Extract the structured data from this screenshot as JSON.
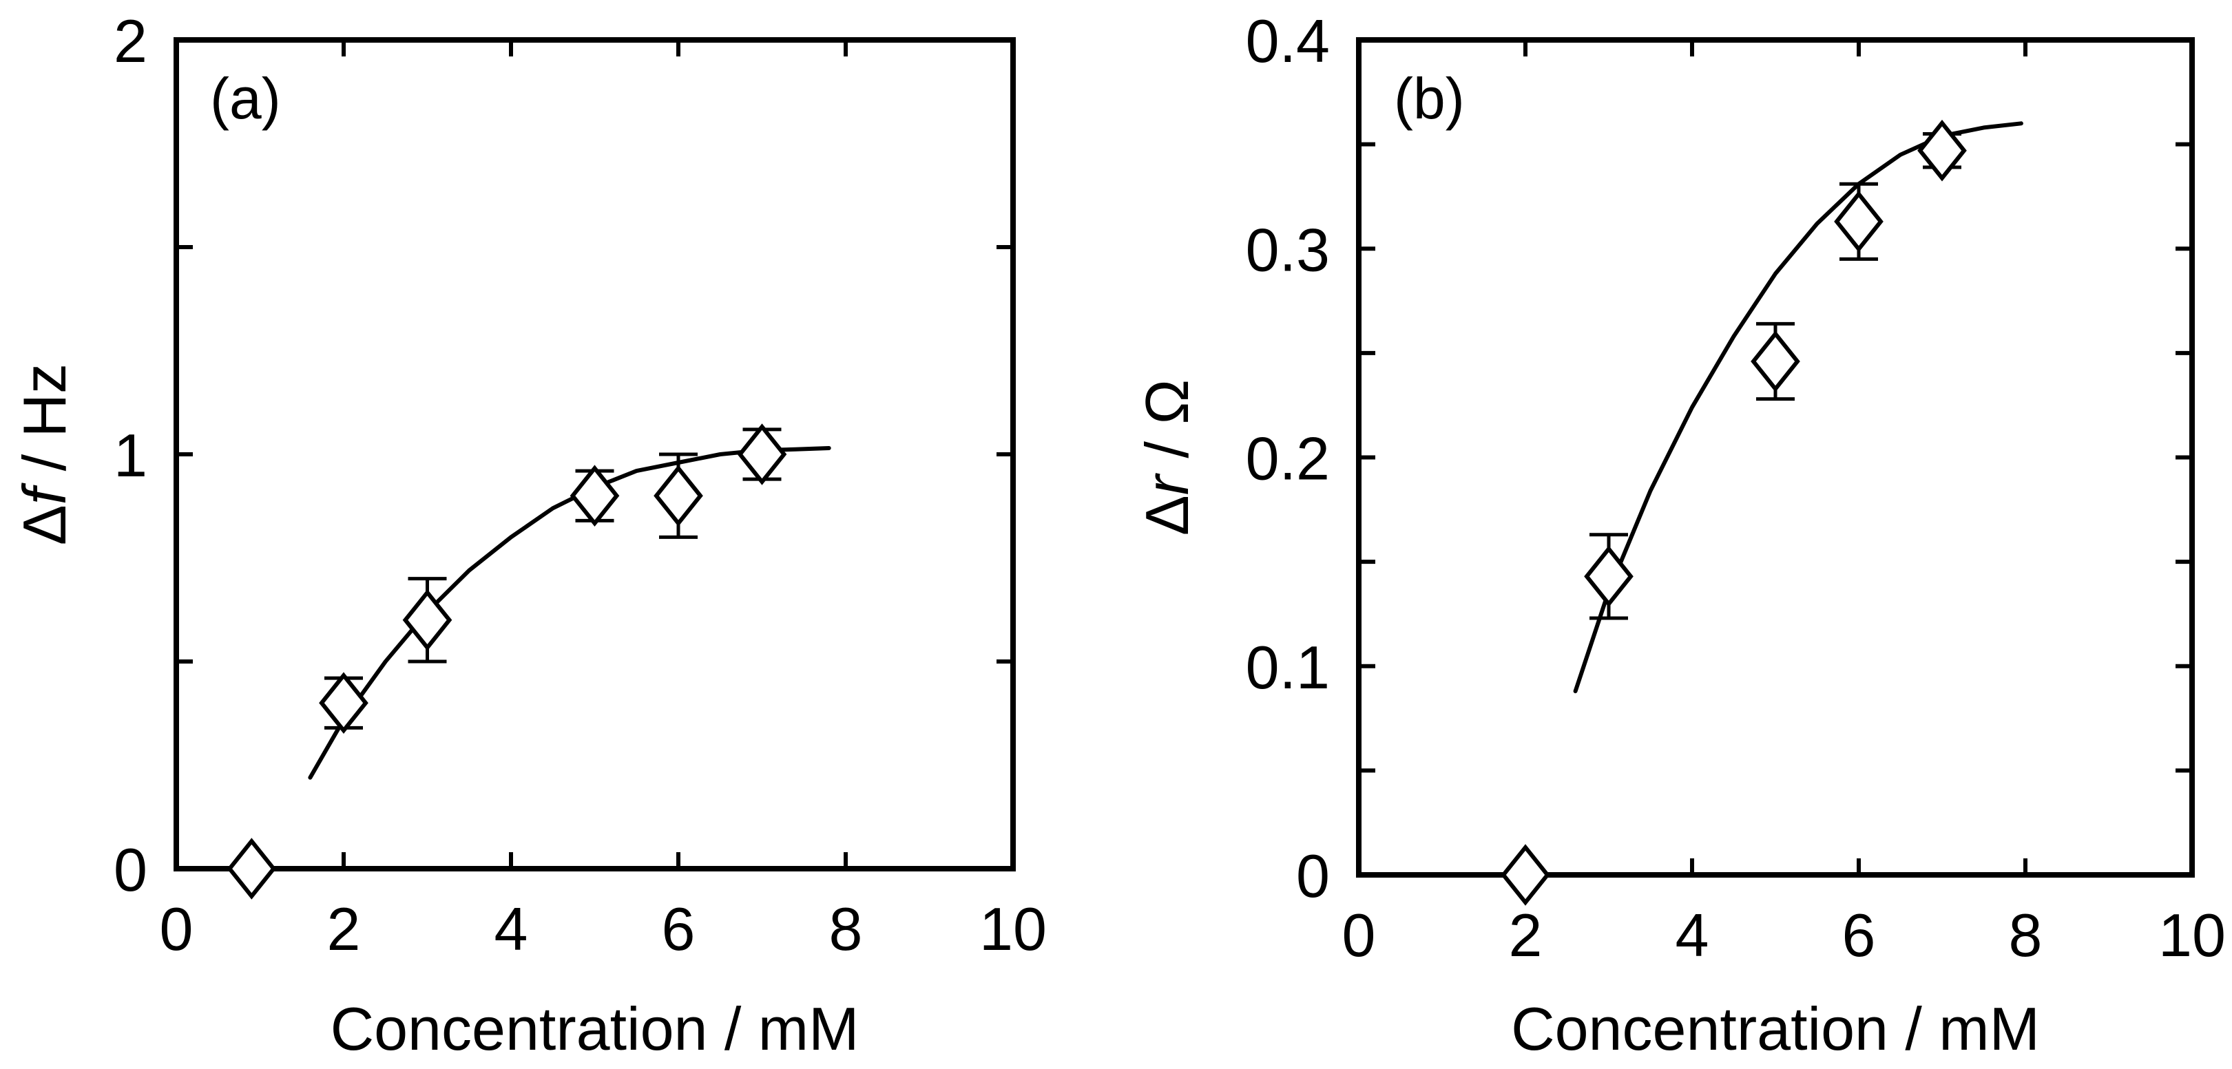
{
  "chart_data": [
    {
      "id": "a",
      "type": "scatter",
      "panel_label": "(a)",
      "xlabel": "Concentration / mM",
      "ylabel": {
        "symbol": "Δ",
        "variable": "f",
        "unit": " / Hz"
      },
      "xlim": [
        0,
        10
      ],
      "ylim": [
        0,
        2
      ],
      "x_ticks": [
        0,
        2,
        4,
        6,
        8,
        10
      ],
      "x_tick_labels": [
        "0",
        "2",
        "4",
        "6",
        "8",
        "10"
      ],
      "y_ticks": [
        0,
        0.5,
        1,
        1.5,
        2
      ],
      "y_tick_labels": [
        "0",
        "",
        "1",
        "",
        "2"
      ],
      "grid": false,
      "marker": "open-diamond",
      "points": [
        {
          "x": 0.9,
          "y": 0.0
        },
        {
          "x": 2,
          "y": 0.4,
          "err": 0.06
        },
        {
          "x": 3,
          "y": 0.6,
          "err": 0.1
        },
        {
          "x": 5,
          "y": 0.9,
          "err": 0.06
        },
        {
          "x": 6,
          "y": 0.9,
          "err": 0.1
        },
        {
          "x": 7,
          "y": 1.0,
          "err": 0.06
        }
      ],
      "fit": {
        "x": [
          1.6,
          2.0,
          2.5,
          3.0,
          3.5,
          4.0,
          4.5,
          5.0,
          5.5,
          6.0,
          6.5,
          7.0,
          7.4,
          7.8
        ],
        "y": [
          0.22,
          0.36,
          0.5,
          0.62,
          0.72,
          0.8,
          0.87,
          0.92,
          0.96,
          0.98,
          1.0,
          1.01,
          1.012,
          1.015
        ]
      }
    },
    {
      "id": "b",
      "type": "scatter",
      "panel_label": "(b)",
      "xlabel": "Concentration / mM",
      "ylabel": {
        "symbol": "Δ",
        "variable": "r",
        "unit": " / Ω"
      },
      "xlim": [
        0,
        10
      ],
      "ylim": [
        0,
        0.4
      ],
      "x_ticks": [
        0,
        2,
        4,
        6,
        8,
        10
      ],
      "x_tick_labels": [
        "0",
        "2",
        "4",
        "6",
        "8",
        "10"
      ],
      "y_ticks": [
        0,
        0.05,
        0.1,
        0.15,
        0.2,
        0.25,
        0.3,
        0.35,
        0.4
      ],
      "y_tick_labels": [
        "0",
        "",
        "0.1",
        "",
        "0.2",
        "",
        "0.3",
        "",
        "0.4"
      ],
      "grid": false,
      "marker": "open-diamond",
      "points": [
        {
          "x": 2,
          "y": 0.0
        },
        {
          "x": 3,
          "y": 0.143,
          "err": 0.02
        },
        {
          "x": 5,
          "y": 0.246,
          "err": 0.018
        },
        {
          "x": 6,
          "y": 0.313,
          "err": 0.018
        },
        {
          "x": 7,
          "y": 0.347,
          "err": 0.008
        }
      ],
      "fit": {
        "x": [
          2.6,
          3.0,
          3.5,
          4.0,
          4.5,
          5.0,
          5.5,
          6.0,
          6.5,
          7.0,
          7.5,
          7.95
        ],
        "y": [
          0.088,
          0.136,
          0.184,
          0.224,
          0.258,
          0.288,
          0.312,
          0.331,
          0.345,
          0.354,
          0.358,
          0.36
        ]
      }
    }
  ]
}
